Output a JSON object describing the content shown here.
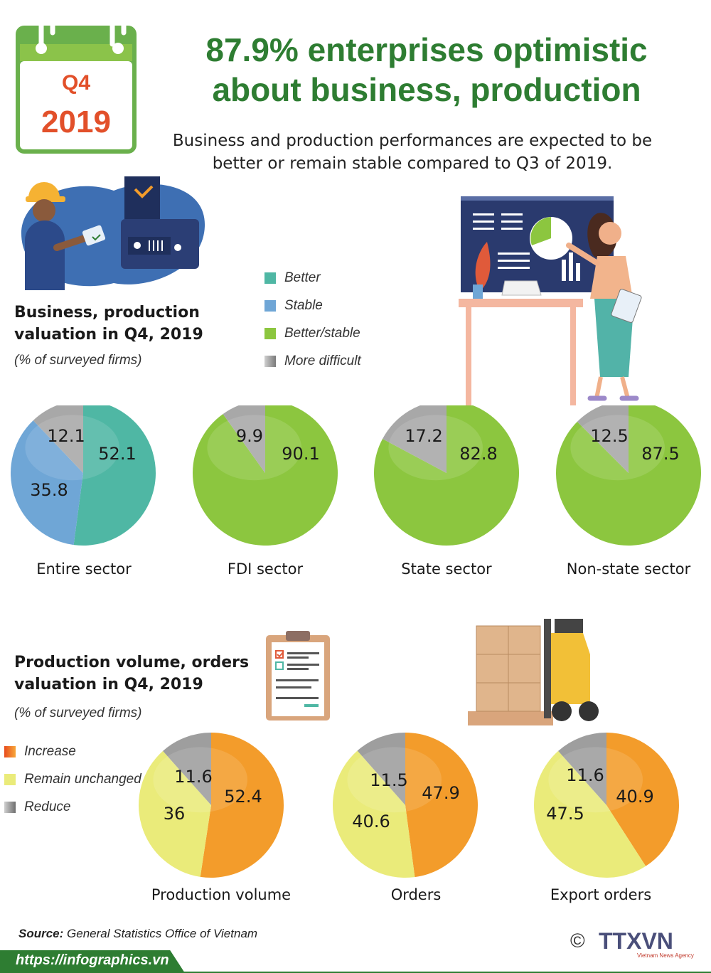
{
  "calendar": {
    "quarter": "Q4",
    "year": "2019"
  },
  "header": {
    "title_line1": "87.9% enterprises optimistic",
    "title_line2": "about business, production",
    "subtitle_line1": "Business and production performances are expected to be",
    "subtitle_line2": "better or remain stable compared to Q3 of 2019."
  },
  "section1": {
    "title_line1": "Business, production",
    "title_line2": "valuation in Q4, 2019",
    "note": "(% of surveyed firms)",
    "legend": [
      {
        "label": "Better",
        "color": "#4fb7a4"
      },
      {
        "label": "Stable",
        "color": "#6fa6d6"
      },
      {
        "label": "Better/stable",
        "color": "#8cc63f"
      },
      {
        "label": "More difficult",
        "color": "#a8a8a8"
      }
    ]
  },
  "section2": {
    "title_line1": "Production volume, orders",
    "title_line2": "valuation in Q4, 2019",
    "note": "(% of surveyed firms)",
    "legend": [
      {
        "label": "Increase",
        "color": "#f39c2b"
      },
      {
        "label": "Remain unchanged",
        "color": "#eaeb7a"
      },
      {
        "label": "Reduce",
        "color": "#9e9e9e"
      }
    ]
  },
  "chart_data": [
    {
      "type": "pie",
      "title": "Entire sector",
      "slices": [
        {
          "category": "Better",
          "value": 52.1,
          "color": "#4fb7a4"
        },
        {
          "category": "Stable",
          "value": 35.8,
          "color": "#6fa6d6"
        },
        {
          "category": "More difficult",
          "value": 12.1,
          "color": "#a8a8a8"
        }
      ]
    },
    {
      "type": "pie",
      "title": "FDI sector",
      "slices": [
        {
          "category": "Better/stable",
          "value": 90.1,
          "color": "#8cc63f"
        },
        {
          "category": "More difficult",
          "value": 9.9,
          "color": "#a8a8a8"
        }
      ]
    },
    {
      "type": "pie",
      "title": "State sector",
      "slices": [
        {
          "category": "Better/stable",
          "value": 82.8,
          "color": "#8cc63f"
        },
        {
          "category": "More difficult",
          "value": 17.2,
          "color": "#a8a8a8"
        }
      ]
    },
    {
      "type": "pie",
      "title": "Non-state sector",
      "slices": [
        {
          "category": "Better/stable",
          "value": 87.5,
          "color": "#8cc63f"
        },
        {
          "category": "More difficult",
          "value": 12.5,
          "color": "#a8a8a8"
        }
      ]
    },
    {
      "type": "pie",
      "title": "Production volume",
      "slices": [
        {
          "category": "Increase",
          "value": 52.4,
          "color": "#f39c2b"
        },
        {
          "category": "Remain unchanged",
          "value": 36,
          "color": "#eaeb7a"
        },
        {
          "category": "Reduce",
          "value": 11.6,
          "color": "#9e9e9e"
        }
      ]
    },
    {
      "type": "pie",
      "title": "Orders",
      "slices": [
        {
          "category": "Increase",
          "value": 47.9,
          "color": "#f39c2b"
        },
        {
          "category": "Remain unchanged",
          "value": 40.6,
          "color": "#eaeb7a"
        },
        {
          "category": "Reduce",
          "value": 11.5,
          "color": "#9e9e9e"
        }
      ]
    },
    {
      "type": "pie",
      "title": "Export orders",
      "slices": [
        {
          "category": "Increase",
          "value": 40.9,
          "color": "#f39c2b"
        },
        {
          "category": "Remain unchanged",
          "value": 47.5,
          "color": "#eaeb7a"
        },
        {
          "category": "Reduce",
          "value": 11.6,
          "color": "#9e9e9e"
        }
      ]
    }
  ],
  "footer": {
    "source_label": "Source:",
    "source_text": "General Statistics Office of Vietnam",
    "url": "https://infographics.vn",
    "copyright": "©",
    "logo_text": "TTXVN",
    "logo_subtext": "Vietnam News Agency"
  }
}
